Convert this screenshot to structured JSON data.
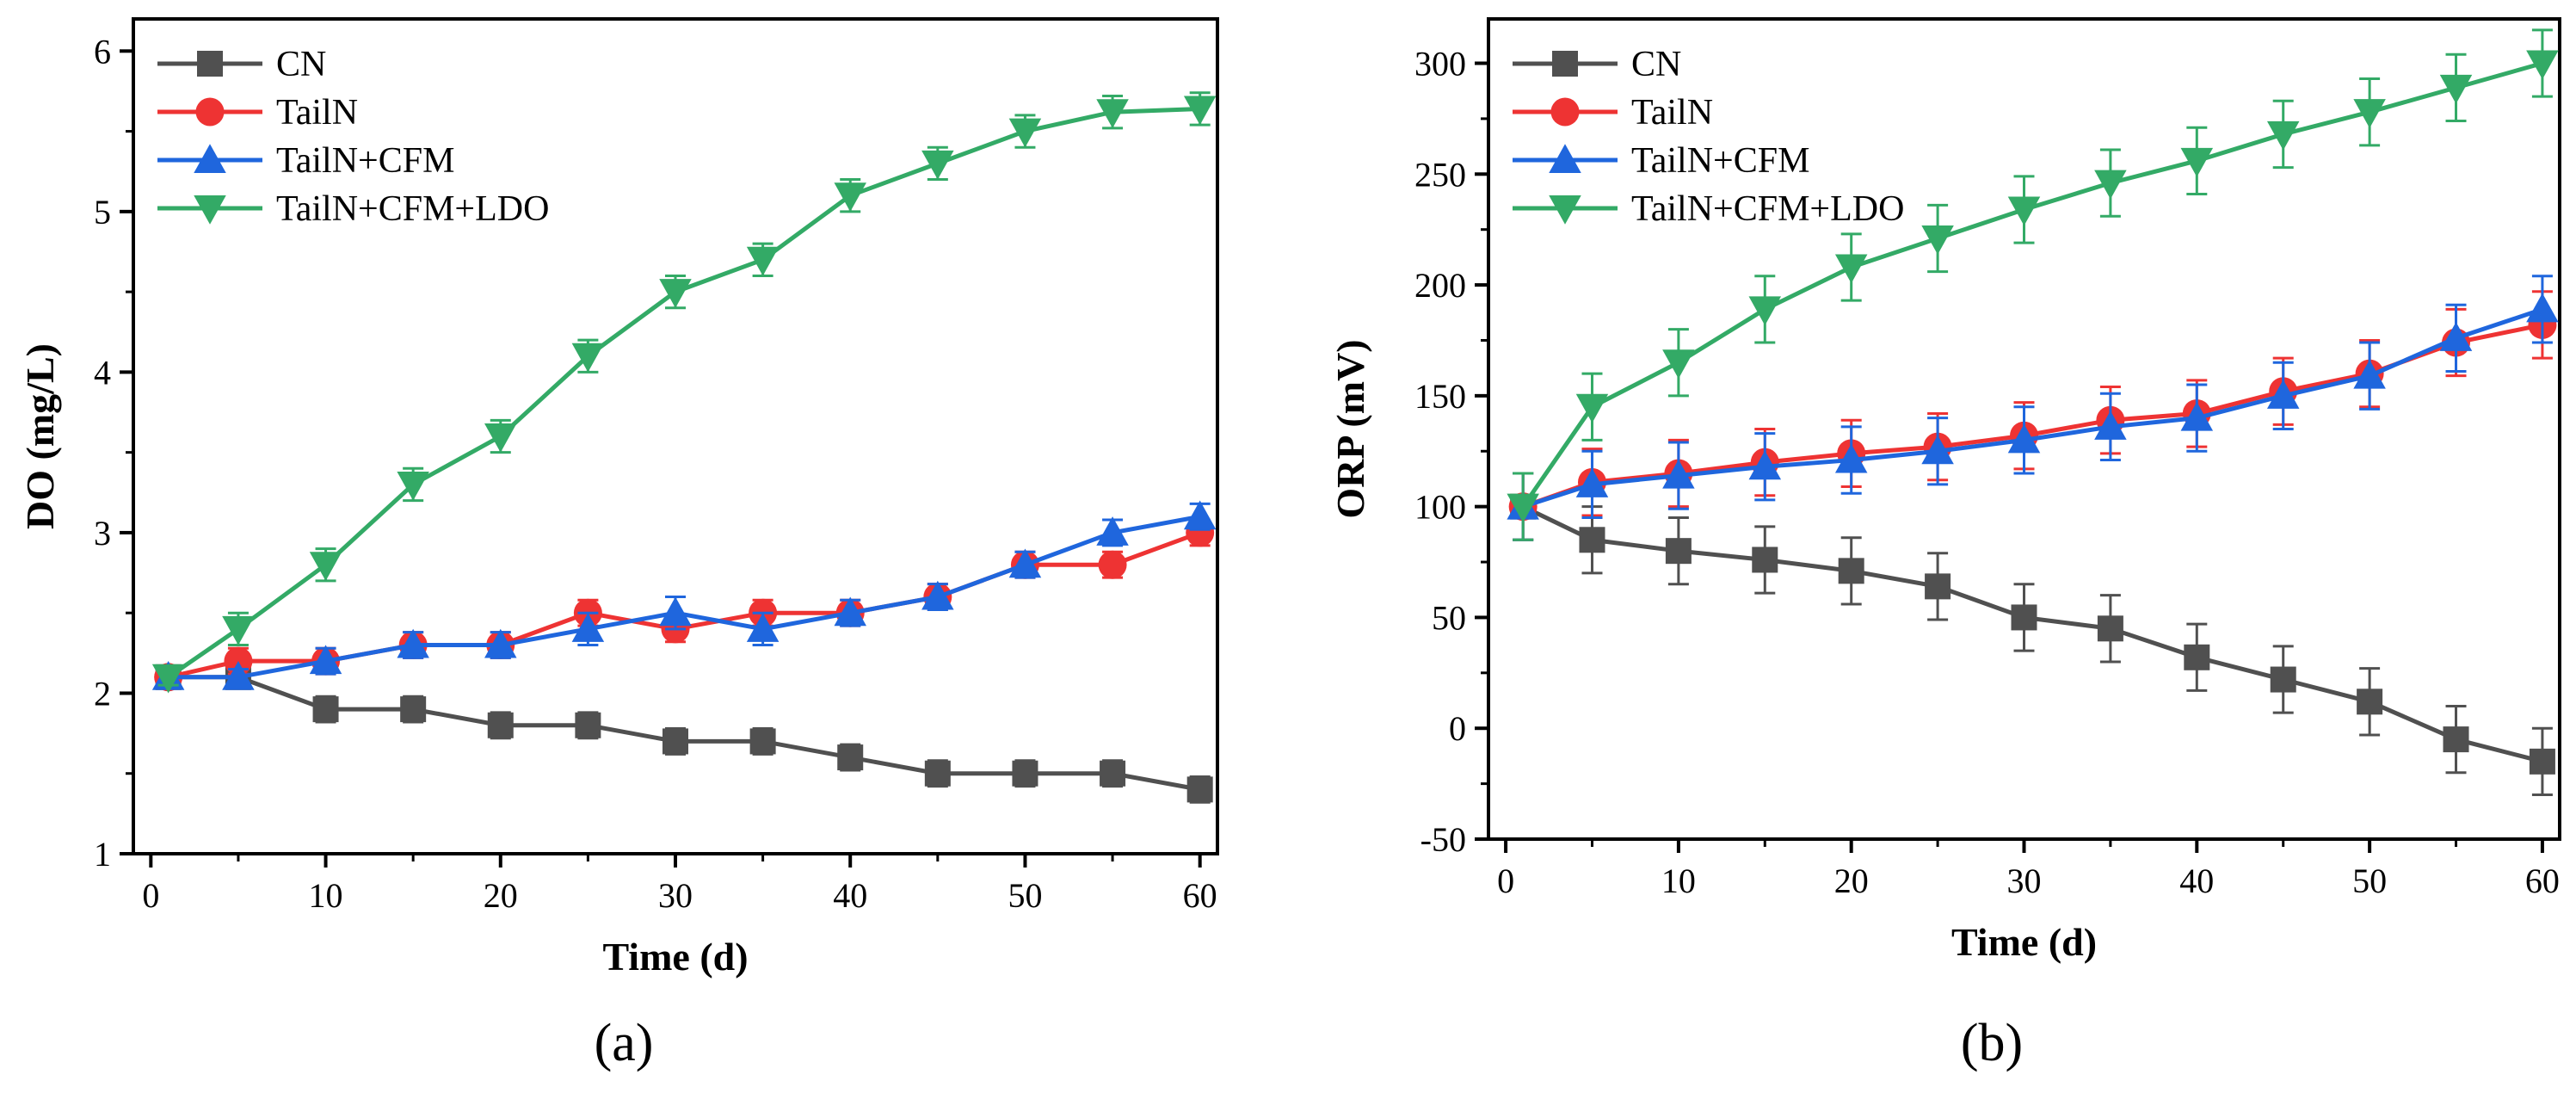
{
  "chart_data": [
    {
      "type": "line",
      "panel_label": "(a)",
      "xlabel": "Time (d)",
      "ylabel": "DO (mg/L)",
      "xlim": [
        -1,
        61
      ],
      "ylim": [
        1,
        6.2
      ],
      "xticks": [
        0,
        10,
        20,
        30,
        40,
        50,
        60
      ],
      "yticks": [
        1,
        2,
        3,
        4,
        5,
        6
      ],
      "legend_position": "top-left",
      "x": [
        1,
        5,
        10,
        15,
        20,
        25,
        30,
        35,
        40,
        45,
        50,
        55,
        60
      ],
      "series": [
        {
          "name": "CN",
          "color": "#505050",
          "marker": "square",
          "values": [
            2.1,
            2.1,
            1.9,
            1.9,
            1.8,
            1.8,
            1.7,
            1.7,
            1.6,
            1.5,
            1.5,
            1.5,
            1.4
          ],
          "errors": [
            0.05,
            0.05,
            0.08,
            0.08,
            0.08,
            0.08,
            0.08,
            0.08,
            0.08,
            0.08,
            0.08,
            0.08,
            0.08
          ]
        },
        {
          "name": "TailN",
          "color": "#ee3333",
          "marker": "circle",
          "values": [
            2.1,
            2.2,
            2.2,
            2.3,
            2.3,
            2.5,
            2.4,
            2.5,
            2.5,
            2.6,
            2.8,
            2.8,
            3.0
          ],
          "errors": [
            0.05,
            0.08,
            0.08,
            0.08,
            0.08,
            0.08,
            0.08,
            0.08,
            0.08,
            0.08,
            0.08,
            0.08,
            0.08
          ]
        },
        {
          "name": "TailN+CFM",
          "color": "#1f66dd",
          "marker": "triangle-up",
          "values": [
            2.1,
            2.1,
            2.2,
            2.3,
            2.3,
            2.4,
            2.5,
            2.4,
            2.5,
            2.6,
            2.8,
            3.0,
            3.1
          ],
          "errors": [
            0.05,
            0.05,
            0.08,
            0.08,
            0.08,
            0.1,
            0.1,
            0.1,
            0.08,
            0.08,
            0.08,
            0.08,
            0.08
          ]
        },
        {
          "name": "TailN+CFM+LDO",
          "color": "#33aa66",
          "marker": "triangle-down",
          "values": [
            2.1,
            2.4,
            2.8,
            3.3,
            3.6,
            4.1,
            4.5,
            4.7,
            5.1,
            5.3,
            5.5,
            5.62,
            5.64
          ],
          "errors": [
            0.05,
            0.1,
            0.1,
            0.1,
            0.1,
            0.1,
            0.1,
            0.1,
            0.1,
            0.1,
            0.1,
            0.1,
            0.1
          ]
        }
      ]
    },
    {
      "type": "line",
      "panel_label": "(b)",
      "xlabel": "Time (d)",
      "ylabel": "ORP (mV)",
      "xlim": [
        -1,
        61
      ],
      "ylim": [
        -50,
        320
      ],
      "xticks": [
        0,
        10,
        20,
        30,
        40,
        50,
        60
      ],
      "yticks": [
        -50,
        0,
        50,
        100,
        150,
        200,
        250,
        300
      ],
      "legend_position": "top-left",
      "x": [
        1,
        5,
        10,
        15,
        20,
        25,
        30,
        35,
        40,
        45,
        50,
        55,
        60
      ],
      "series": [
        {
          "name": "CN",
          "color": "#505050",
          "marker": "square",
          "values": [
            100,
            85,
            80,
            76,
            71,
            64,
            50,
            45,
            32,
            22,
            12,
            -5,
            -15
          ],
          "errors": [
            15,
            15,
            15,
            15,
            15,
            15,
            15,
            15,
            15,
            15,
            15,
            15,
            15
          ]
        },
        {
          "name": "TailN",
          "color": "#ee3333",
          "marker": "circle",
          "values": [
            100,
            111,
            115,
            120,
            124,
            127,
            132,
            139,
            142,
            152,
            160,
            174,
            182
          ],
          "errors": [
            15,
            15,
            15,
            15,
            15,
            15,
            15,
            15,
            15,
            15,
            15,
            15,
            15
          ]
        },
        {
          "name": "TailN+CFM",
          "color": "#1f66dd",
          "marker": "triangle-up",
          "values": [
            100,
            110,
            114,
            118,
            121,
            125,
            130,
            136,
            140,
            150,
            159,
            176,
            189
          ],
          "errors": [
            15,
            15,
            15,
            15,
            15,
            15,
            15,
            15,
            15,
            15,
            15,
            15,
            15
          ]
        },
        {
          "name": "TailN+CFM+LDO",
          "color": "#33aa66",
          "marker": "triangle-down",
          "values": [
            100,
            145,
            165,
            189,
            208,
            221,
            234,
            246,
            256,
            268,
            278,
            289,
            300
          ],
          "errors": [
            15,
            15,
            15,
            15,
            15,
            15,
            15,
            15,
            15,
            15,
            15,
            15,
            15
          ]
        }
      ]
    }
  ]
}
